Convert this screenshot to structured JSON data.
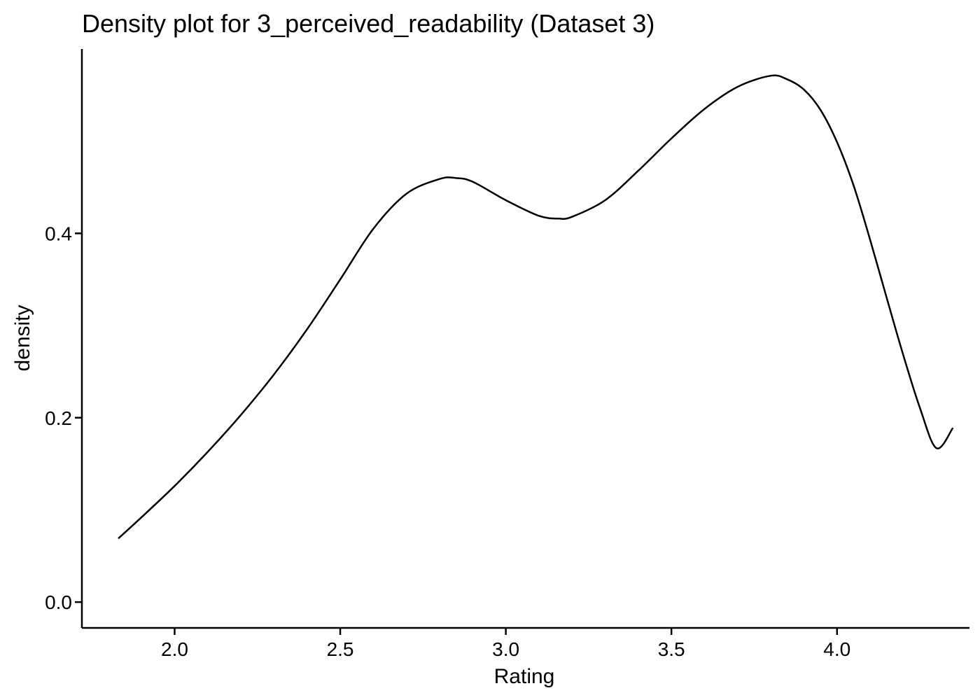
{
  "chart_data": {
    "type": "line",
    "title": "Density plot for 3_perceived_readability (Dataset 3)",
    "xlabel": "Rating",
    "ylabel": "density",
    "xlim": [
      1.72,
      4.4
    ],
    "ylim": [
      -0.028,
      0.6
    ],
    "xticks": [
      2.0,
      2.5,
      3.0,
      3.5,
      4.0
    ],
    "xtick_labels": [
      "2.0",
      "2.5",
      "3.0",
      "3.5",
      "4.0"
    ],
    "yticks": [
      0.0,
      0.2,
      0.4
    ],
    "ytick_labels": [
      "0.0",
      "0.2",
      "0.4"
    ],
    "grid": false,
    "line_color": "#000000",
    "series": [
      {
        "x": [
          1.83,
          1.9,
          2.0,
          2.1,
          2.2,
          2.3,
          2.4,
          2.5,
          2.6,
          2.7,
          2.8,
          2.85,
          2.9,
          3.0,
          3.1,
          3.16,
          3.2,
          3.3,
          3.4,
          3.5,
          3.6,
          3.7,
          3.8,
          3.85,
          3.9,
          3.95,
          4.0,
          4.05,
          4.1,
          4.15,
          4.2,
          4.25,
          4.3,
          4.35
        ],
        "y": [
          0.069,
          0.092,
          0.126,
          0.163,
          0.203,
          0.247,
          0.296,
          0.35,
          0.405,
          0.443,
          0.459,
          0.46,
          0.456,
          0.436,
          0.419,
          0.416,
          0.418,
          0.436,
          0.468,
          0.503,
          0.535,
          0.559,
          0.571,
          0.567,
          0.556,
          0.534,
          0.499,
          0.452,
          0.393,
          0.33,
          0.268,
          0.211,
          0.167,
          0.189
        ]
      }
    ]
  }
}
